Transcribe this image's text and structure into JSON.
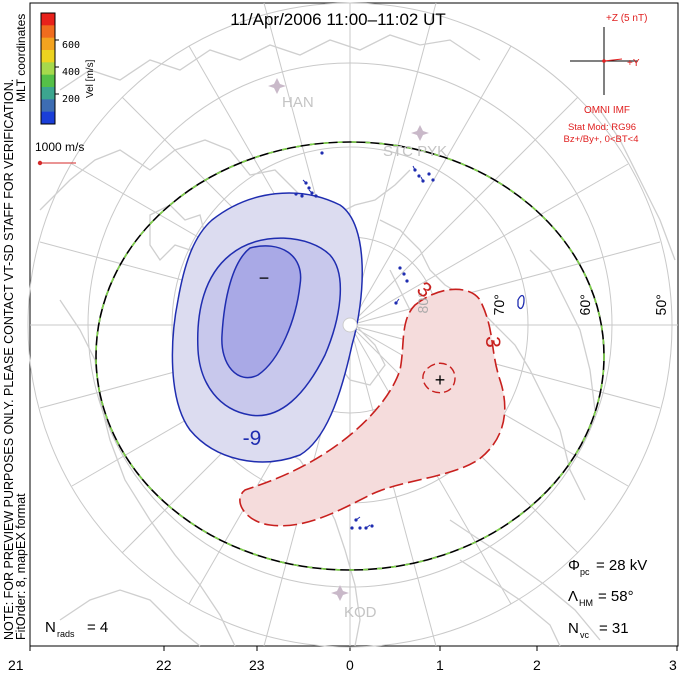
{
  "title": "11/Apr/2006 11:00–11:02 UT",
  "side_note_1": "NOTE: FOR PREVIEW PURPOSES ONLY. PLEASE CONTACT VT-SD STAFF FOR VERIFICATION.",
  "side_note_2": "FitOrder: 8, mapEX format",
  "coord_label": "MLT coordinates",
  "colorbar": {
    "label": "Vel [m/s]",
    "ticks": [
      "600",
      "400",
      "200"
    ],
    "colors": [
      "#e8211b",
      "#f06c1e",
      "#f3a31f",
      "#ecd320",
      "#a6d94c",
      "#55c048",
      "#3ca68f",
      "#3d6db3",
      "#1a3ed8"
    ]
  },
  "velocity_scale_label": "1000 m/s",
  "imf": {
    "z_label": "+Z (5 nT)",
    "y_label": "+Y",
    "source": "OMNI IMF",
    "model": "Stat Mod: RG96",
    "condition": "Bz+/By+, 0<BT<4"
  },
  "latitude_labels": [
    "70°",
    "60°",
    "50°"
  ],
  "stations": [
    "HAN",
    "STC PYK",
    "KOD"
  ],
  "contours": {
    "negative_label": "-9",
    "positive_label": "3",
    "positive_label_2": "3",
    "min_symbol": "−",
    "max_symbol": "+",
    "negative_color": "#1f2db0",
    "positive_color": "#c8201e"
  },
  "stats": {
    "phi_pc_label": "Φ",
    "phi_pc_sub": "pc",
    "phi_pc_value": "= 28 kV",
    "lambda_label": "Λ",
    "lambda_sub": "HM",
    "lambda_value": "= 58°",
    "nvc_label": "N",
    "nvc_sub": "vc",
    "nvc_value": "= 31",
    "nrads_label": "N",
    "nrads_sub": "rads",
    "nrads_value": "= 4"
  },
  "mlt_axis": [
    "21",
    "22",
    "23",
    "0",
    "1",
    "2",
    "3"
  ]
}
